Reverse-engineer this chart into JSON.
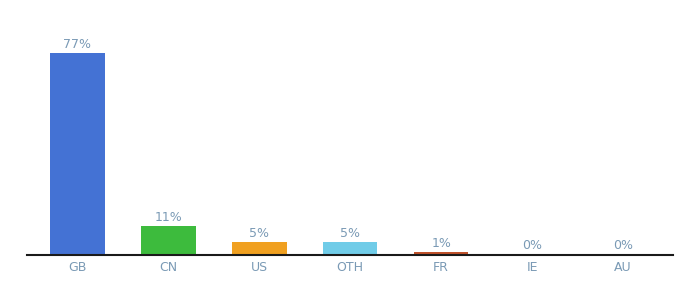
{
  "categories": [
    "GB",
    "CN",
    "US",
    "OTH",
    "FR",
    "IE",
    "AU"
  ],
  "values": [
    77,
    11,
    5,
    5,
    1,
    0.3,
    0.3
  ],
  "bar_colors": [
    "#4472d4",
    "#3dbb3d",
    "#f0a020",
    "#70cce8",
    "#c0522b",
    "#c8a87a",
    "#c8a87a"
  ],
  "labels": [
    "77%",
    "11%",
    "5%",
    "5%",
    "1%",
    "0%",
    "0%"
  ],
  "background_color": "#ffffff",
  "xlabel_color": "#7a9ab5",
  "label_color": "#7a9ab5",
  "ylim": [
    0,
    88
  ],
  "bar_width": 0.6,
  "figsize": [
    6.8,
    3.0
  ],
  "dpi": 100
}
